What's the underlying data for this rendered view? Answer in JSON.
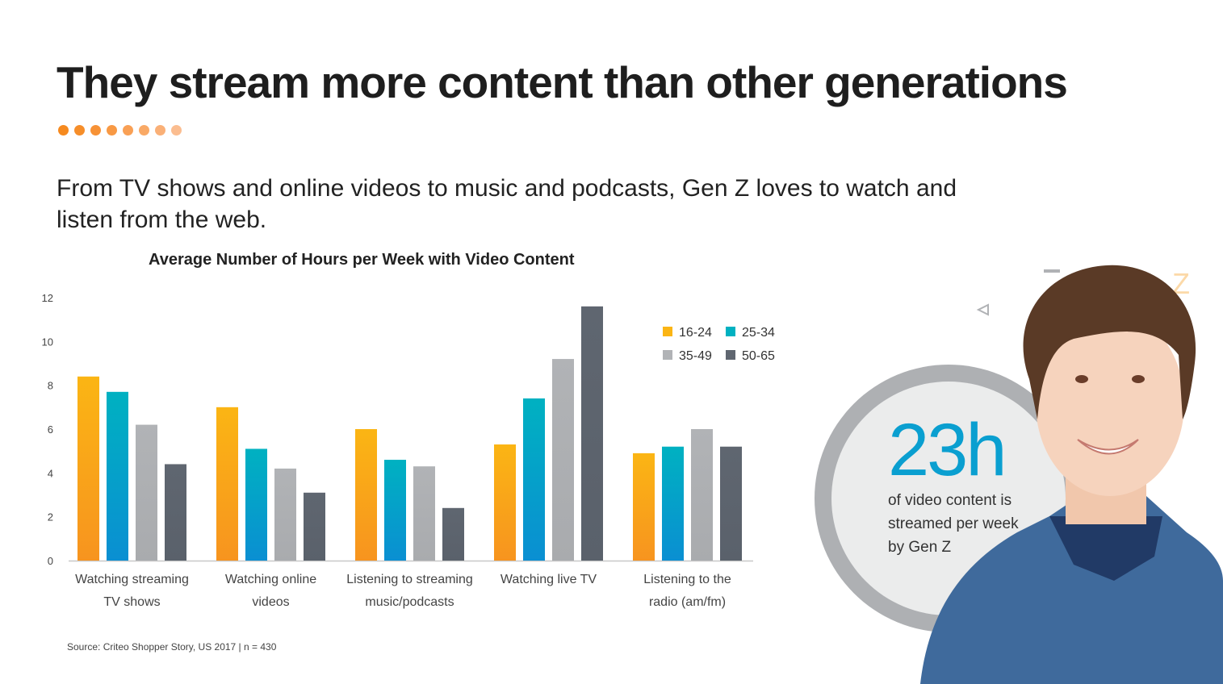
{
  "title": "They stream more content than other generations",
  "subtitle": "From TV shows and online videos to music and podcasts, Gen Z loves to watch and listen from the web.",
  "dot_colors": [
    "#f68a1f",
    "#f68e2a",
    "#f79236",
    "#f89944",
    "#f9a055",
    "#f9a966",
    "#fab077",
    "#fbbd90"
  ],
  "source": "Source: Criteo Shopper Story, US 2017 | n = 430",
  "stat": {
    "value": "23h",
    "text": "of video content is streamed per week by Gen Z",
    "color": "#0a9fd0"
  },
  "chart_data": {
    "type": "bar",
    "title": "Average Number of Hours per Week with Video Content",
    "xlabel": "",
    "ylabel": "",
    "ylim": [
      0,
      12
    ],
    "yticks": [
      "0",
      "2",
      "4",
      "6",
      "8",
      "10",
      "12"
    ],
    "grid": false,
    "legend_position": "top-right",
    "categories": [
      [
        "Watching streaming",
        "TV shows"
      ],
      [
        "Watching online",
        "videos"
      ],
      [
        "Listening to streaming",
        "music/podcasts"
      ],
      [
        "Watching live TV",
        ""
      ],
      [
        "Listening to the",
        "radio (am/fm)"
      ]
    ],
    "series": [
      {
        "name": "16-24",
        "values": [
          8.4,
          7.0,
          6.0,
          5.3,
          4.9
        ],
        "color": "#fbb514",
        "color2": "#f7941f"
      },
      {
        "name": "25-34",
        "values": [
          7.7,
          5.1,
          4.6,
          7.4,
          5.2
        ],
        "color": "#00b1c1",
        "color2": "#0a8fd2"
      },
      {
        "name": "35-49",
        "values": [
          6.2,
          4.2,
          4.3,
          9.2,
          6.0
        ],
        "color": "#b1b3b6",
        "color2": "#a9abae"
      },
      {
        "name": "50-65",
        "values": [
          4.4,
          3.1,
          2.4,
          11.6,
          5.2
        ],
        "color": "#5f6670",
        "color2": "#5a616b"
      }
    ]
  }
}
